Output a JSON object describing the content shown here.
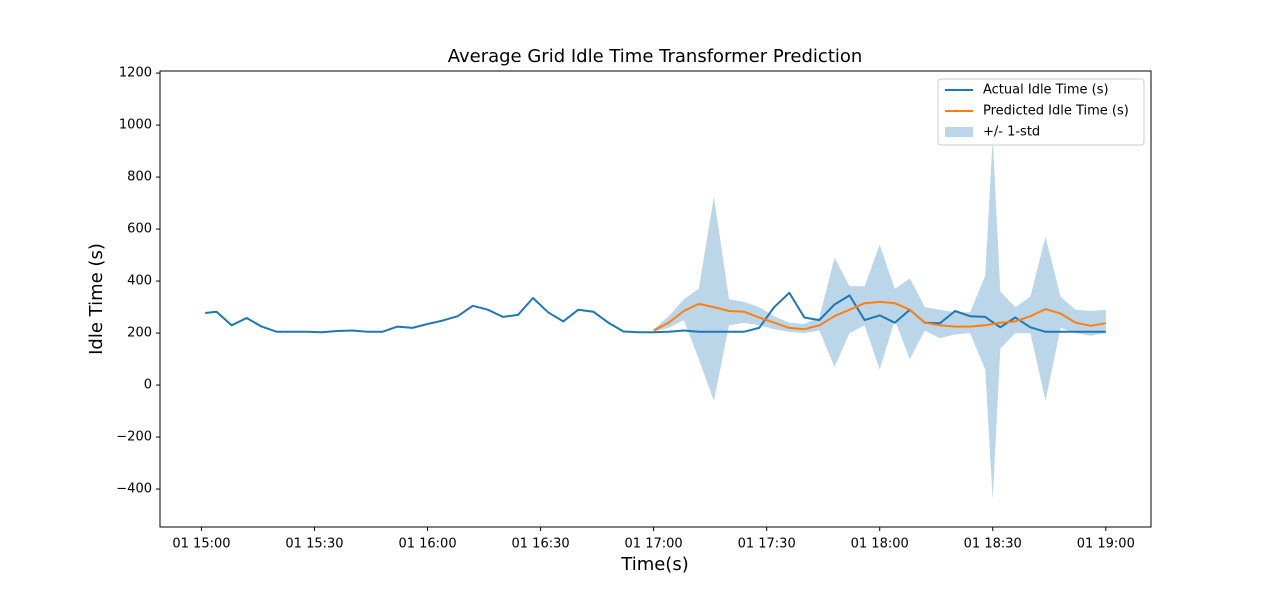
{
  "chart_data": {
    "type": "line",
    "title": "Average Grid Idle Time Transformer Prediction",
    "x_label": "Time(s)",
    "y_label": "Idle Time (s)",
    "xlim": [
      "01 14:49",
      "01 19:12"
    ],
    "xticks": [
      "01 15:00",
      "01 15:30",
      "01 16:00",
      "01 16:30",
      "01 17:00",
      "01 17:30",
      "01 18:00",
      "01 18:30",
      "01 19:00"
    ],
    "ylim": [
      -546,
      1208
    ],
    "yticks": [
      {
        "value": -400,
        "label": "−400"
      },
      {
        "value": -200,
        "label": "−200"
      },
      0,
      200,
      400,
      600,
      800,
      1000,
      1200
    ],
    "legend": "upper right",
    "series": [
      {
        "name": "Actual Idle Time (s)",
        "color": "#1f77b4",
        "x": [
          "01 15:01",
          "01 15:04",
          "01 15:08",
          "01 15:12",
          "01 15:16",
          "01 15:20",
          "01 15:24",
          "01 15:28",
          "01 15:32",
          "01 15:36",
          "01 15:40",
          "01 15:44",
          "01 15:48",
          "01 15:52",
          "01 15:56",
          "01 16:00",
          "01 16:04",
          "01 16:08",
          "01 16:12",
          "01 16:16",
          "01 16:20",
          "01 16:24",
          "01 16:28",
          "01 16:32",
          "01 16:36",
          "01 16:40",
          "01 16:44",
          "01 16:48",
          "01 16:52",
          "01 16:56",
          "01 17:00",
          "01 17:04",
          "01 17:08",
          "01 17:12",
          "01 17:16",
          "01 17:20",
          "01 17:24",
          "01 17:28",
          "01 17:32",
          "01 17:36",
          "01 17:40",
          "01 17:44",
          "01 17:48",
          "01 17:52",
          "01 17:56",
          "01 18:00",
          "01 18:04",
          "01 18:08",
          "01 18:12",
          "01 18:16",
          "01 18:20",
          "01 18:24",
          "01 18:28",
          "01 18:32",
          "01 18:36",
          "01 18:40",
          "01 18:44",
          "01 18:48",
          "01 18:52",
          "01 18:56",
          "01 19:00"
        ],
        "values": [
          277,
          282,
          230,
          258,
          225,
          205,
          205,
          205,
          203,
          208,
          210,
          205,
          205,
          225,
          220,
          235,
          248,
          265,
          305,
          290,
          262,
          270,
          335,
          280,
          245,
          290,
          282,
          240,
          206,
          203,
          203,
          205,
          210,
          205,
          205,
          205,
          205,
          220,
          300,
          355,
          260,
          250,
          310,
          345,
          250,
          268,
          240,
          290,
          240,
          238,
          285,
          265,
          262,
          222,
          260,
          222,
          205,
          205,
          205,
          205,
          205
        ]
      },
      {
        "name": "Predicted Idle Time (s)",
        "color": "#ff7f0e",
        "x": [
          "01 17:00",
          "01 17:04",
          "01 17:08",
          "01 17:12",
          "01 17:16",
          "01 17:20",
          "01 17:24",
          "01 17:28",
          "01 17:32",
          "01 17:36",
          "01 17:40",
          "01 17:44",
          "01 17:48",
          "01 17:52",
          "01 17:56",
          "01 18:00",
          "01 18:04",
          "01 18:08",
          "01 18:12",
          "01 18:16",
          "01 18:20",
          "01 18:24",
          "01 18:28",
          "01 18:30",
          "01 18:32",
          "01 18:36",
          "01 18:40",
          "01 18:44",
          "01 18:48",
          "01 18:52",
          "01 18:56",
          "01 19:00"
        ],
        "values": [
          210,
          240,
          285,
          312,
          300,
          285,
          282,
          260,
          240,
          220,
          215,
          230,
          265,
          290,
          315,
          320,
          315,
          290,
          240,
          230,
          225,
          225,
          230,
          235,
          240,
          245,
          265,
          292,
          275,
          240,
          228,
          238
        ]
      },
      {
        "name": "+/- 1-std",
        "color": "#1f77b4",
        "opacity": 0.3,
        "x": [
          "01 17:00",
          "01 17:04",
          "01 17:08",
          "01 17:12",
          "01 17:16",
          "01 17:20",
          "01 17:24",
          "01 17:28",
          "01 17:32",
          "01 17:36",
          "01 17:40",
          "01 17:44",
          "01 17:48",
          "01 17:52",
          "01 17:56",
          "01 18:00",
          "01 18:04",
          "01 18:08",
          "01 18:12",
          "01 18:16",
          "01 18:20",
          "01 18:24",
          "01 18:28",
          "01 18:30",
          "01 18:32",
          "01 18:36",
          "01 18:40",
          "01 18:44",
          "01 18:48",
          "01 18:52",
          "01 18:56",
          "01 19:00"
        ],
        "lower": [
          205,
          220,
          250,
          100,
          -60,
          230,
          240,
          230,
          215,
          205,
          200,
          210,
          70,
          200,
          230,
          60,
          250,
          100,
          210,
          180,
          195,
          200,
          60,
          -440,
          140,
          200,
          200,
          -60,
          220,
          200,
          190,
          200
        ],
        "upper": [
          215,
          265,
          330,
          370,
          725,
          330,
          320,
          300,
          265,
          240,
          235,
          260,
          490,
          380,
          380,
          540,
          370,
          410,
          300,
          290,
          280,
          280,
          420,
          950,
          360,
          300,
          340,
          570,
          340,
          290,
          285,
          290
        ]
      }
    ]
  }
}
